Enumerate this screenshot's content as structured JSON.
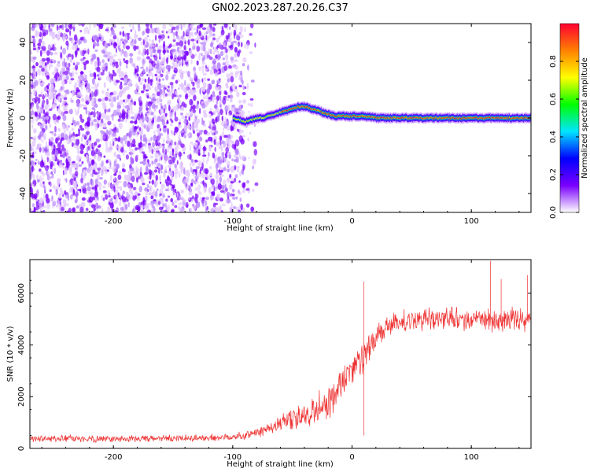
{
  "title": "GN02.2023.287.20.26.C37",
  "chart_data": [
    {
      "type": "heatmap",
      "xlabel": "Height of straight line (km)",
      "ylabel": "Frequency (Hz)",
      "xlim": [
        -270,
        150
      ],
      "ylim": [
        -50,
        50
      ],
      "x_ticks": [
        -200,
        -100,
        0,
        100
      ],
      "x_tick_labels": [
        "-200",
        "-100",
        "0",
        "100"
      ],
      "y_ticks": [
        -40,
        -20,
        0,
        20,
        40
      ],
      "y_tick_labels": [
        "-40",
        "-20",
        "0",
        "20",
        "40"
      ],
      "grid": false,
      "colorbar": {
        "label": "Normalized spectral amplitude",
        "range": [
          0,
          1
        ],
        "ticks": [
          0.0,
          0.2,
          0.4,
          0.6,
          0.8
        ],
        "tick_labels": [
          "0.0",
          "0.2",
          "0.4",
          "0.6",
          "0.8"
        ],
        "colormap": [
          "#ffffff",
          "#7a00ff",
          "#0000ff",
          "#00e5ff",
          "#00ff00",
          "#ffff00",
          "#ff8000",
          "#ff0033"
        ]
      },
      "ridge": {
        "x": [
          -100,
          -95,
          -90,
          -85,
          -80,
          -75,
          -70,
          -65,
          -60,
          -55,
          -50,
          -45,
          -40,
          -35,
          -30,
          -25,
          -20,
          -15,
          -10,
          -5,
          0,
          10,
          20,
          40,
          60,
          80,
          100,
          120,
          150
        ],
        "frequency": [
          0,
          -1,
          -2,
          -1,
          0,
          0,
          1,
          2,
          3,
          4,
          5,
          6,
          6,
          5,
          4,
          3,
          2,
          1,
          1,
          1,
          1,
          1,
          0,
          0,
          0,
          0,
          0,
          0,
          0
        ]
      }
    },
    {
      "type": "line",
      "xlabel": "Height of straight line (km)",
      "ylabel": "SNR (10 * v/v)",
      "xlim": [
        -270,
        150
      ],
      "ylim": [
        0,
        7300
      ],
      "x_ticks": [
        -200,
        -100,
        0,
        100
      ],
      "x_tick_labels": [
        "-200",
        "-100",
        "0",
        "100"
      ],
      "y_ticks": [
        0,
        2000,
        4000,
        6000
      ],
      "y_tick_labels": [
        "0",
        "2000",
        "4000",
        "6000"
      ],
      "grid": false,
      "line_color": "#ee3333",
      "trend": {
        "x": [
          -270,
          -200,
          -150,
          -110,
          -90,
          -80,
          -70,
          -60,
          -50,
          -40,
          -30,
          -20,
          -10,
          0,
          10,
          20,
          30,
          40,
          60,
          80,
          100,
          120,
          150
        ],
        "y": [
          380,
          370,
          380,
          420,
          500,
          600,
          800,
          950,
          1100,
          1300,
          1500,
          1800,
          2400,
          3000,
          3600,
          4200,
          4700,
          4900,
          5000,
          5050,
          4950,
          5000,
          5000
        ]
      },
      "noise": {
        "x": [
          -270,
          -150,
          -100,
          -80,
          -60,
          -40,
          -20,
          0,
          20,
          40,
          100,
          150
        ],
        "amplitude": [
          160,
          160,
          180,
          250,
          400,
          600,
          900,
          900,
          650,
          500,
          500,
          550
        ]
      },
      "spikes": [
        {
          "x": 10,
          "y": 6450
        },
        {
          "x": 116,
          "y": 7250
        },
        {
          "x": 125,
          "y": 6550
        },
        {
          "x": 147,
          "y": 6700
        },
        {
          "x": 10,
          "y": 500
        }
      ]
    }
  ]
}
